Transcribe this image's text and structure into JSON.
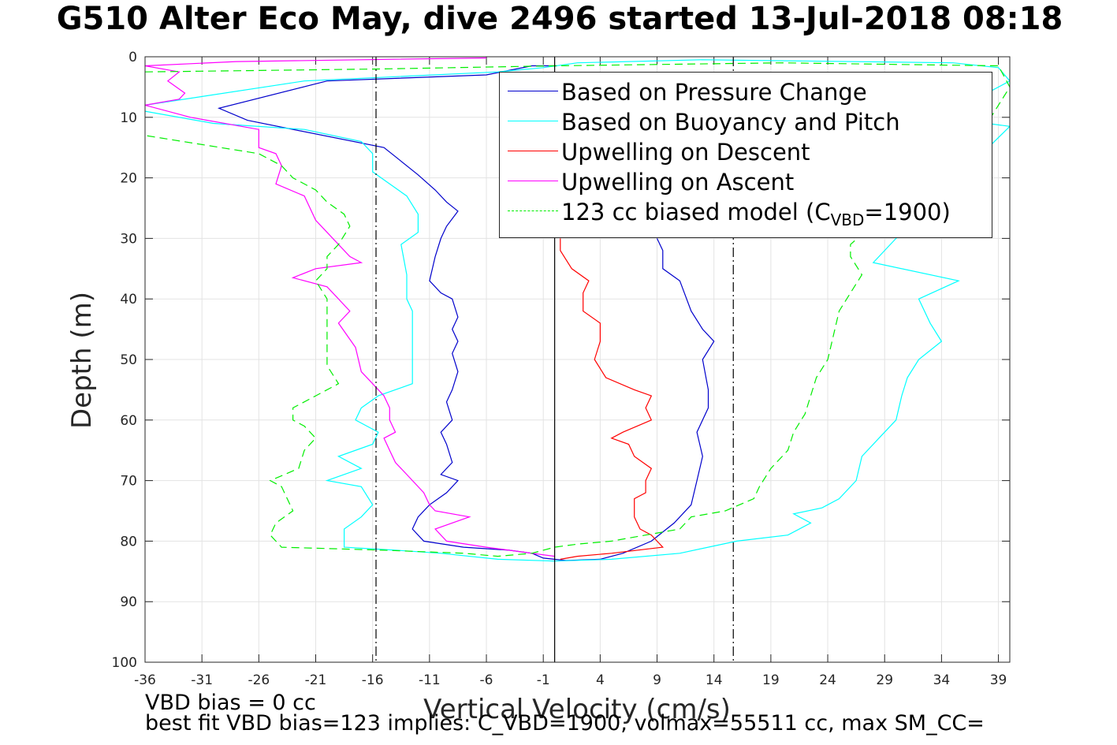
{
  "title": "G510 Alter Eco May, dive 2496 started 13-Jul-2018 08:18",
  "footer": {
    "line1": "VBD bias = 0 cc",
    "line2": "best fit VBD bias=123 implies: C_VBD=1900, volmax=55511 cc, max SM_CC="
  },
  "legend": {
    "items": [
      {
        "label": "Based on Pressure Change",
        "color": "#0000cc",
        "dash": false
      },
      {
        "label": "Based on Buoyancy and Pitch",
        "color": "#00ffff",
        "dash": false
      },
      {
        "label": "Upwelling on Descent",
        "color": "#ff0000",
        "dash": false
      },
      {
        "label": "Upwelling on Ascent",
        "color": "#ff00ff",
        "dash": false
      },
      {
        "label_prefix": "123 cc biased model (C",
        "label_sub": "VBD",
        "label_suffix": "=1900)",
        "color": "#00ee00",
        "dash": true
      }
    ]
  },
  "chart_data": {
    "type": "line",
    "title": "G510 Alter Eco May, dive 2496 started 13-Jul-2018 08:18",
    "xlabel": "Vertical Velocity (cm/s)",
    "ylabel": "Depth (m)",
    "xlim": [
      -36,
      40
    ],
    "ylim": [
      0,
      100
    ],
    "y_reversed": true,
    "grid": true,
    "legend_position": "top-right",
    "xticks": [
      -36,
      -31,
      -26,
      -21,
      -16,
      -11,
      -6,
      -1,
      4,
      9,
      14,
      19,
      24,
      29,
      34,
      39
    ],
    "yticks": [
      0,
      10,
      20,
      30,
      40,
      50,
      60,
      70,
      80,
      90,
      100
    ],
    "reference_lines": [
      {
        "orientation": "vertical",
        "x": 0,
        "style": "solid",
        "color": "#000000"
      },
      {
        "orientation": "vertical",
        "x": -15.7,
        "style": "dashdot",
        "color": "#000000"
      },
      {
        "orientation": "vertical",
        "x": 15.7,
        "style": "dashdot",
        "color": "#000000"
      }
    ],
    "series": [
      {
        "name": "Based on Pressure Change",
        "color": "#0000cc",
        "dash": false,
        "points": [
          [
            0.2,
            1.5
          ],
          [
            -2,
            1.5
          ],
          [
            -6,
            3
          ],
          [
            -20,
            4
          ],
          [
            -29.5,
            8.5
          ],
          [
            -27,
            10.5
          ],
          [
            -15,
            15
          ],
          [
            -14,
            16.5
          ],
          [
            -12,
            19.5
          ],
          [
            -10.5,
            22
          ],
          [
            -9.5,
            24
          ],
          [
            -8.5,
            25.5
          ],
          [
            -9.5,
            28
          ],
          [
            -10,
            30
          ],
          [
            -10.5,
            33
          ],
          [
            -11,
            37
          ],
          [
            -10,
            39
          ],
          [
            -9,
            40
          ],
          [
            -8.5,
            43
          ],
          [
            -9,
            45
          ],
          [
            -8.5,
            47
          ],
          [
            -9,
            49
          ],
          [
            -8.5,
            52
          ],
          [
            -9,
            55
          ],
          [
            -9.5,
            57
          ],
          [
            -9,
            60
          ],
          [
            -10,
            62
          ],
          [
            -9.5,
            64
          ],
          [
            -9,
            67
          ],
          [
            -10,
            69
          ],
          [
            -8.5,
            70
          ],
          [
            -9.5,
            72
          ],
          [
            -11,
            74
          ],
          [
            -12,
            76
          ],
          [
            -12.5,
            78
          ],
          [
            -11.5,
            80
          ],
          [
            -8,
            81
          ],
          [
            -4,
            81.5
          ],
          [
            -2,
            82
          ],
          [
            -1,
            82.8
          ],
          [
            1,
            83.2
          ],
          [
            4,
            83
          ],
          [
            6,
            82
          ],
          [
            8.5,
            80
          ],
          [
            10.5,
            77
          ],
          [
            12,
            74
          ],
          [
            12.5,
            70
          ],
          [
            13,
            66
          ],
          [
            12.5,
            62
          ],
          [
            13.5,
            58
          ],
          [
            13.5,
            55
          ],
          [
            13,
            50
          ],
          [
            14,
            47
          ],
          [
            13,
            45
          ],
          [
            12,
            42
          ],
          [
            11,
            37
          ],
          [
            9.5,
            35
          ],
          [
            9.5,
            32
          ],
          [
            9,
            30
          ]
        ]
      },
      {
        "name": "Based on Buoyancy and Pitch",
        "color": "#00ffff",
        "dash": false,
        "points": [
          [
            -36,
            8
          ],
          [
            -22,
            4
          ],
          [
            -5,
            2.5
          ],
          [
            -1,
            1.8
          ],
          [
            2,
            1
          ],
          [
            13,
            0.5
          ],
          [
            35,
            1
          ],
          [
            39,
            1.8
          ],
          [
            40,
            4
          ],
          [
            38,
            6
          ],
          [
            36,
            10.5
          ],
          [
            40,
            11.5
          ],
          [
            30,
            30
          ],
          [
            28,
            34
          ],
          [
            35.5,
            37
          ],
          [
            32,
            40
          ],
          [
            33,
            44
          ],
          [
            34,
            47
          ],
          [
            32,
            50
          ],
          [
            31,
            53
          ],
          [
            30.5,
            56
          ],
          [
            30,
            60
          ],
          [
            28.5,
            63
          ],
          [
            27,
            66
          ],
          [
            26.5,
            70
          ],
          [
            25,
            73
          ],
          [
            23.5,
            74.5
          ],
          [
            21,
            75.5
          ],
          [
            22.5,
            77
          ],
          [
            20.5,
            79
          ],
          [
            16,
            80
          ],
          [
            11,
            82
          ],
          [
            5,
            83
          ],
          [
            0,
            83.3
          ],
          [
            -5,
            83
          ],
          [
            -10,
            82
          ],
          [
            -14,
            81.5
          ],
          [
            -18.5,
            81
          ],
          [
            -18.5,
            78
          ],
          [
            -17,
            76
          ],
          [
            -16,
            74
          ],
          [
            -17,
            71
          ],
          [
            -20,
            70
          ],
          [
            -17,
            68
          ],
          [
            -19,
            66
          ],
          [
            -16,
            64
          ],
          [
            -15.5,
            62
          ],
          [
            -17.5,
            60
          ],
          [
            -17,
            58
          ],
          [
            -15.5,
            56
          ],
          [
            -12.5,
            54
          ],
          [
            -12.5,
            50
          ],
          [
            -12.5,
            45
          ],
          [
            -12.5,
            42
          ],
          [
            -13,
            40
          ],
          [
            -13,
            36
          ],
          [
            -13.5,
            31
          ],
          [
            -12,
            29
          ],
          [
            -12,
            26
          ],
          [
            -13,
            23
          ],
          [
            -14.5,
            21
          ],
          [
            -16,
            19
          ],
          [
            -16,
            16
          ],
          [
            -17,
            14
          ],
          [
            -22,
            12
          ],
          [
            -30,
            11
          ],
          [
            -36,
            9
          ]
        ]
      },
      {
        "name": "Upwelling on Descent",
        "color": "#ff0000",
        "dash": false,
        "points": [
          [
            0.5,
            30
          ],
          [
            0.5,
            32
          ],
          [
            1.5,
            35
          ],
          [
            3,
            37
          ],
          [
            2.5,
            39
          ],
          [
            2.5,
            42
          ],
          [
            4,
            44
          ],
          [
            4,
            47
          ],
          [
            3.5,
            50
          ],
          [
            4.5,
            53
          ],
          [
            7,
            55
          ],
          [
            8.5,
            56
          ],
          [
            8,
            58
          ],
          [
            8.5,
            60
          ],
          [
            6,
            62
          ],
          [
            5,
            63
          ],
          [
            6.5,
            64
          ],
          [
            7,
            66
          ],
          [
            8.5,
            68
          ],
          [
            8,
            70
          ],
          [
            8,
            72
          ],
          [
            7,
            73
          ],
          [
            7,
            76
          ],
          [
            7.5,
            78
          ],
          [
            8.5,
            79
          ],
          [
            9,
            80
          ],
          [
            9.5,
            81
          ],
          [
            5,
            82
          ],
          [
            2,
            82.5
          ],
          [
            0.5,
            83
          ]
        ]
      },
      {
        "name": "Upwelling on Ascent",
        "color": "#ff00ff",
        "dash": false,
        "points": [
          [
            -6,
            0.2
          ],
          [
            -28,
            0.8
          ],
          [
            -36,
            1.5
          ],
          [
            -33,
            2.5
          ],
          [
            -34,
            4
          ],
          [
            -32.5,
            6
          ],
          [
            -33,
            7
          ],
          [
            -36,
            8
          ],
          [
            -32,
            10
          ],
          [
            -26,
            12
          ],
          [
            -26,
            15
          ],
          [
            -24.5,
            16
          ],
          [
            -24,
            18
          ],
          [
            -24.5,
            21
          ],
          [
            -22,
            23
          ],
          [
            -21,
            27
          ],
          [
            -20,
            29
          ],
          [
            -19.5,
            30
          ],
          [
            -18,
            33
          ],
          [
            -17,
            34
          ],
          [
            -21,
            35
          ],
          [
            -23,
            36.5
          ],
          [
            -20,
            38
          ],
          [
            -19,
            40
          ],
          [
            -18,
            42
          ],
          [
            -19,
            44
          ],
          [
            -17.5,
            48
          ],
          [
            -17,
            52
          ],
          [
            -16,
            54
          ],
          [
            -15,
            56
          ],
          [
            -14.5,
            58
          ],
          [
            -14.5,
            60
          ],
          [
            -14,
            62
          ],
          [
            -15,
            63
          ],
          [
            -14.5,
            65
          ],
          [
            -14,
            67
          ],
          [
            -13,
            69
          ],
          [
            -11.5,
            72
          ],
          [
            -11,
            74
          ],
          [
            -10.5,
            75
          ],
          [
            -7.5,
            76
          ],
          [
            -10.5,
            78
          ],
          [
            -9.5,
            80
          ],
          [
            -6,
            81
          ],
          [
            -4,
            81.5
          ],
          [
            -2,
            82
          ],
          [
            0,
            82.5
          ]
        ]
      },
      {
        "name": "123 cc biased model (C_VBD=1900)",
        "color": "#00ee00",
        "dash": true,
        "points": [
          [
            -36,
            2.5
          ],
          [
            -15,
            2
          ],
          [
            0,
            1.5
          ],
          [
            20,
            1
          ],
          [
            39,
            1.5
          ],
          [
            40,
            5
          ],
          [
            39,
            8
          ],
          [
            38,
            11
          ],
          [
            26,
            31
          ],
          [
            26,
            33
          ],
          [
            27,
            36
          ],
          [
            26,
            39
          ],
          [
            25,
            42
          ],
          [
            24.5,
            46
          ],
          [
            24,
            50
          ],
          [
            23,
            53
          ],
          [
            22.5,
            56
          ],
          [
            22,
            59
          ],
          [
            21,
            62
          ],
          [
            20.5,
            65
          ],
          [
            19,
            68
          ],
          [
            18,
            71
          ],
          [
            17.5,
            73
          ],
          [
            15,
            75
          ],
          [
            12,
            76
          ],
          [
            11,
            78
          ],
          [
            8,
            79
          ],
          [
            5,
            80
          ],
          [
            2,
            80.5
          ],
          [
            0,
            81
          ],
          [
            -2,
            82
          ],
          [
            -5,
            82.5
          ],
          [
            -8,
            82
          ],
          [
            -15,
            81.5
          ],
          [
            -24,
            81
          ],
          [
            -25,
            79
          ],
          [
            -24.5,
            77
          ],
          [
            -23,
            75
          ],
          [
            -23.5,
            73
          ],
          [
            -24,
            71
          ],
          [
            -25,
            70
          ],
          [
            -22.5,
            68
          ],
          [
            -22,
            65
          ],
          [
            -21,
            63
          ],
          [
            -22,
            61
          ],
          [
            -23,
            60
          ],
          [
            -23,
            58
          ],
          [
            -21,
            56
          ],
          [
            -19,
            54
          ],
          [
            -20,
            51
          ],
          [
            -20,
            48
          ],
          [
            -20,
            45
          ],
          [
            -20,
            42
          ],
          [
            -20,
            40
          ],
          [
            -21,
            37
          ],
          [
            -20,
            35
          ],
          [
            -20,
            33
          ],
          [
            -19,
            31
          ],
          [
            -18,
            28
          ],
          [
            -18.5,
            26
          ],
          [
            -20,
            24
          ],
          [
            -21,
            22
          ],
          [
            -23,
            20
          ],
          [
            -24,
            18
          ],
          [
            -26,
            16
          ],
          [
            -36,
            13
          ]
        ]
      }
    ]
  }
}
